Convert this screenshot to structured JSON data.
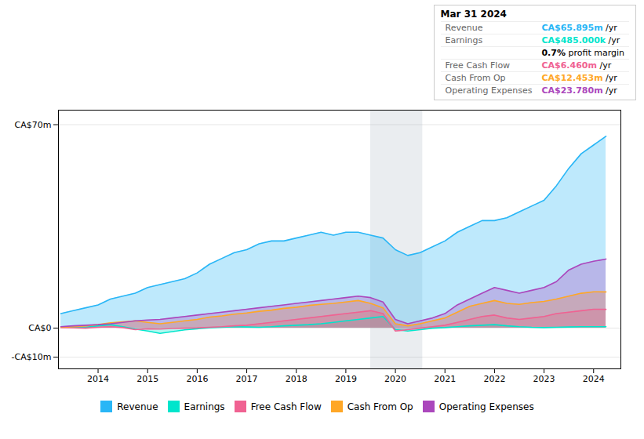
{
  "chart_data": {
    "type": "area",
    "x": [
      2013.25,
      2013.5,
      2013.75,
      2014.0,
      2014.25,
      2014.5,
      2014.75,
      2015.0,
      2015.25,
      2015.5,
      2015.75,
      2016.0,
      2016.25,
      2016.5,
      2016.75,
      2017.0,
      2017.25,
      2017.5,
      2017.75,
      2018.0,
      2018.25,
      2018.5,
      2018.75,
      2019.0,
      2019.25,
      2019.5,
      2019.75,
      2020.0,
      2020.25,
      2020.5,
      2020.75,
      2021.0,
      2021.25,
      2021.5,
      2021.75,
      2022.0,
      2022.25,
      2022.5,
      2022.75,
      2023.0,
      2023.25,
      2023.5,
      2023.75,
      2024.0,
      2024.25
    ],
    "xlim": [
      2013.2,
      2024.55
    ],
    "xticks": [
      2014,
      2015,
      2016,
      2017,
      2018,
      2019,
      2020,
      2021,
      2022,
      2023,
      2024
    ],
    "ylim": [
      -14,
      75
    ],
    "yticks": [
      {
        "value": -10,
        "label": "-CA$10m"
      },
      {
        "value": 0,
        "label": "CA$0"
      },
      {
        "value": 70,
        "label": "CA$70m"
      }
    ],
    "grid": true,
    "legend": "bottom",
    "shaded_x": [
      2019.5,
      2020.55
    ],
    "series": [
      {
        "name": "Revenue",
        "color": "#29b6f6",
        "values": [
          5,
          6,
          7,
          8,
          10,
          11,
          12,
          14,
          15,
          16,
          17,
          19,
          22,
          24,
          26,
          27,
          29,
          30,
          30,
          31,
          32,
          33,
          32,
          33,
          33,
          32,
          31,
          27,
          25,
          26,
          28,
          30,
          33,
          35,
          37,
          37,
          38,
          40,
          42,
          44,
          49,
          55,
          60,
          63,
          66
        ]
      },
      {
        "name": "Earnings",
        "color": "#00e5cc",
        "values": [
          0.5,
          0.4,
          0.3,
          0.8,
          1.2,
          0.5,
          -0.3,
          -1.0,
          -1.8,
          -1.2,
          -0.6,
          -0.2,
          0.1,
          0.3,
          0.5,
          0.4,
          0.3,
          0.5,
          0.8,
          1.0,
          1.2,
          1.5,
          2.0,
          2.5,
          3.0,
          3.5,
          4.0,
          -0.5,
          -1.0,
          -0.5,
          0.0,
          0.2,
          0.5,
          0.8,
          1.0,
          1.2,
          0.8,
          0.5,
          0.3,
          0.2,
          0.3,
          0.4,
          0.5,
          0.5,
          0.485
        ]
      },
      {
        "name": "Free Cash Flow",
        "color": "#f06292",
        "values": [
          0.2,
          0.1,
          0.0,
          0.3,
          0.5,
          0.2,
          -0.5,
          -0.2,
          -0.3,
          -0.1,
          0.0,
          0.1,
          0.3,
          0.5,
          0.8,
          1.0,
          1.5,
          2.0,
          2.5,
          3.0,
          3.5,
          4.0,
          4.5,
          5.0,
          5.5,
          6.0,
          5.0,
          -1.0,
          -0.5,
          0.0,
          0.5,
          1.0,
          2.0,
          3.0,
          4.0,
          4.5,
          3.5,
          3.0,
          3.5,
          4.0,
          5.0,
          5.5,
          6.0,
          6.5,
          6.46
        ]
      },
      {
        "name": "Cash From Op",
        "color": "#ffa726",
        "values": [
          0.3,
          0.5,
          0.8,
          1.2,
          1.8,
          2.2,
          2.5,
          2.0,
          1.5,
          2.0,
          2.5,
          3.0,
          3.8,
          4.2,
          4.8,
          5.2,
          5.8,
          6.2,
          6.8,
          7.2,
          7.8,
          8.2,
          8.5,
          9.0,
          9.5,
          8.5,
          7.0,
          1.5,
          0.8,
          1.5,
          2.5,
          3.5,
          5.5,
          7.5,
          8.5,
          9.5,
          8.5,
          8.2,
          8.8,
          9.2,
          10.0,
          11.0,
          12.0,
          12.5,
          12.453
        ]
      },
      {
        "name": "Operating Expenses",
        "color": "#ab47bc",
        "values": [
          0.5,
          0.8,
          1.0,
          1.2,
          1.5,
          2.0,
          2.5,
          2.8,
          3.0,
          3.5,
          4.0,
          4.5,
          5.0,
          5.5,
          6.0,
          6.5,
          7.0,
          7.5,
          8.0,
          8.5,
          9.0,
          9.5,
          10.0,
          10.5,
          11.0,
          10.5,
          9.0,
          3.0,
          1.5,
          2.5,
          3.5,
          5.0,
          8.0,
          10.0,
          12.0,
          14.0,
          13.0,
          12.0,
          13.0,
          14.0,
          16.0,
          20.0,
          22.0,
          23.0,
          23.78
        ]
      }
    ],
    "annotations": [
      {
        "text": "Mar 31 2024"
      },
      {
        "label": "Revenue",
        "text": "CA$65.895m",
        "suffix": " /yr",
        "color": "#29b6f6"
      },
      {
        "label": "Earnings",
        "text": "CA$485.000k",
        "suffix": " /yr",
        "color": "#00e5cc"
      },
      {
        "text": "0.7%",
        "suffix": " profit margin"
      },
      {
        "label": "Free Cash Flow",
        "text": "CA$6.460m",
        "suffix": " /yr",
        "color": "#f06292"
      },
      {
        "label": "Cash From Op",
        "text": "CA$12.453m",
        "suffix": " /yr",
        "color": "#ffa726"
      },
      {
        "label": "Operating Expenses",
        "text": "CA$23.780m",
        "suffix": " /yr",
        "color": "#ab47bc"
      }
    ]
  }
}
